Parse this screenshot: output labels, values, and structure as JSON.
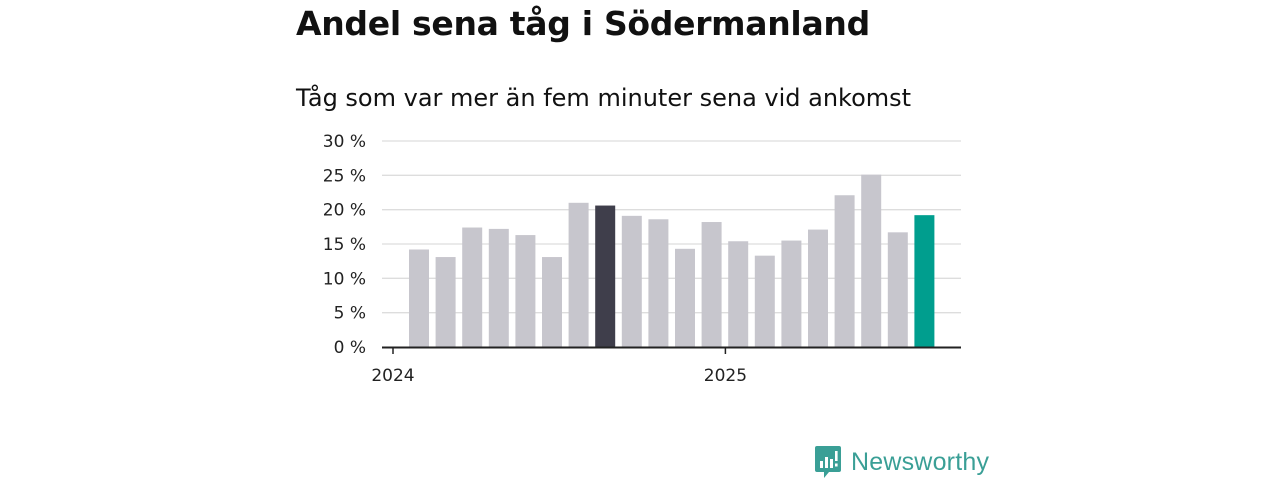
{
  "chart_data": {
    "type": "bar",
    "title": "Andel sena tåg i Södermanland",
    "subtitle": "Tåg som var mer än fem minuter sena vid ankomst",
    "xlabel": "",
    "ylabel": "",
    "ylim": [
      0,
      30
    ],
    "yticks": [
      {
        "value": 0,
        "label": "0 %"
      },
      {
        "value": 5,
        "label": "5 %"
      },
      {
        "value": 10,
        "label": "10 %"
      },
      {
        "value": 15,
        "label": "15 %"
      },
      {
        "value": 20,
        "label": "20 %"
      },
      {
        "value": 25,
        "label": "25 %"
      },
      {
        "value": 30,
        "label": "30 %"
      }
    ],
    "xticks": [
      {
        "index": 0,
        "label": "2024"
      },
      {
        "index": 12,
        "label": "2025"
      }
    ],
    "grid": true,
    "values": [
      14.2,
      13.1,
      17.4,
      17.2,
      16.3,
      13.1,
      21.0,
      20.6,
      19.1,
      18.6,
      14.3,
      18.2,
      15.4,
      13.3,
      15.5,
      17.1,
      22.1,
      25.1,
      16.7,
      19.2
    ],
    "highlight": {
      "index": 7,
      "color": "#3f3e4b"
    },
    "latest": {
      "index": 19,
      "color": "#009e8e"
    },
    "colors": {
      "bar": "#c7c6cd",
      "grid": "#dddddd",
      "axis": "#222222",
      "text": "#222222"
    }
  },
  "brand": {
    "name": "Newsworthy",
    "color": "#3a9f96"
  }
}
